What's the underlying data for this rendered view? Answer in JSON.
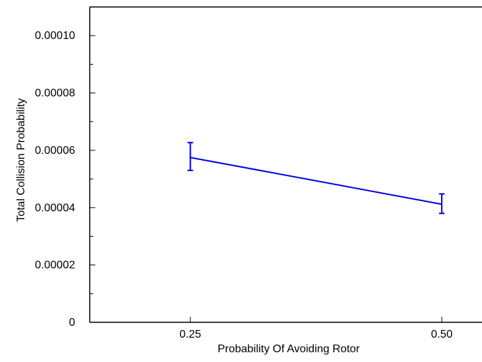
{
  "chart_data": {
    "type": "line",
    "title": "",
    "xlabel": "Probability Of Avoiding Rotor",
    "ylabel": "Total Collision Probability",
    "x_tick_labels": [
      "0.25",
      "0.50"
    ],
    "y_tick_labels": [
      "0",
      "0.00002",
      "0.00004",
      "0.00006",
      "0.00008",
      "0.00010"
    ],
    "x_ticks": [
      0.25,
      0.5
    ],
    "y_ticks": [
      0,
      2e-05,
      4e-05,
      6e-05,
      8e-05,
      0.0001
    ],
    "y_minor_step": 1e-05,
    "xlim": [
      0.15,
      0.54
    ],
    "ylim": [
      0,
      0.00011
    ],
    "grid": false,
    "series": [
      {
        "x": [
          0.25,
          0.5
        ],
        "y": [
          5.75e-05,
          4.12e-05
        ],
        "err_low": [
          5.3e-05,
          3.8e-05
        ],
        "err_high": [
          6.27e-05,
          4.48e-05
        ],
        "color": "#0000e0"
      }
    ]
  }
}
